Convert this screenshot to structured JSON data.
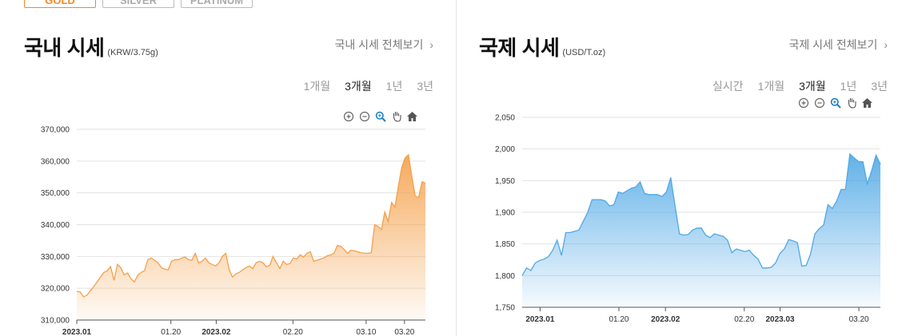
{
  "tabs": [
    {
      "label": "GOLD",
      "active": true
    },
    {
      "label": "SILVER",
      "active": false
    },
    {
      "label": "PLATINUM",
      "active": false
    }
  ],
  "domestic": {
    "title": "국내 시세",
    "unit": "(KRW/3.75g)",
    "more_link": "국내 시세 전체보기",
    "periods": [
      {
        "label": "1개월",
        "active": false
      },
      {
        "label": "3개월",
        "active": true
      },
      {
        "label": "1년",
        "active": false
      },
      {
        "label": "3년",
        "active": false
      }
    ]
  },
  "international": {
    "title": "국제 시세",
    "unit": "(USD/T.oz)",
    "more_link": "국제 시세 전체보기",
    "periods": [
      {
        "label": "실시간",
        "active": false
      },
      {
        "label": "1개월",
        "active": false
      },
      {
        "label": "3개월",
        "active": true
      },
      {
        "label": "1년",
        "active": false
      },
      {
        "label": "3년",
        "active": false
      }
    ]
  },
  "tool_icons": [
    "zoom-in-icon",
    "zoom-out-icon",
    "magnifier-icon",
    "hand-pan-icon",
    "home-icon"
  ],
  "chart_data": [
    {
      "type": "area",
      "series_color": "#f5a04a",
      "ylim": [
        310000,
        370000
      ],
      "yticks": [
        310000,
        320000,
        330000,
        340000,
        350000,
        360000,
        370000
      ],
      "ytick_labels": [
        "310,000",
        "320,000",
        "330,000",
        "340,000",
        "350,000",
        "360,000",
        "370,000"
      ],
      "xticks": [
        {
          "label": "2023.01",
          "pos": 0.0,
          "bold": true
        },
        {
          "label": "01.20",
          "pos": 0.27,
          "bold": false
        },
        {
          "label": "2023.02",
          "pos": 0.4,
          "bold": true
        },
        {
          "label": "02.20",
          "pos": 0.62,
          "bold": false
        },
        {
          "label": "03.10",
          "pos": 0.83,
          "bold": false
        },
        {
          "label": "03.20",
          "pos": 0.94,
          "bold": false
        }
      ],
      "values": [
        319000,
        318800,
        317300,
        317800,
        319200,
        320500,
        322000,
        323500,
        325000,
        325500,
        326800,
        322500,
        327500,
        326500,
        324200,
        324800,
        323000,
        322000,
        324000,
        325000,
        325500,
        329000,
        329500,
        328800,
        328000,
        326500,
        326000,
        325800,
        328500,
        329000,
        329000,
        329500,
        329800,
        329000,
        328800,
        331000,
        328000,
        328500,
        329500,
        328000,
        327500,
        327000,
        328000,
        330000,
        331000,
        326000,
        323500,
        324500,
        325000,
        325800,
        326500,
        327000,
        326200,
        328000,
        328500,
        328000,
        326800,
        327200,
        330000,
        328000,
        326200,
        328500,
        327500,
        327800,
        329500,
        329200,
        330500,
        329800,
        331000,
        331500,
        328500,
        328800,
        329200,
        329500,
        330200,
        330500,
        331000,
        333500,
        333200,
        332200,
        331000,
        332000,
        331800,
        331500,
        331200,
        331000,
        331000,
        331200,
        340000,
        339500,
        338500,
        344000,
        341000,
        347000,
        345500,
        352000,
        358000,
        361000,
        362000,
        355000,
        349000,
        348500,
        353500,
        353000
      ]
    },
    {
      "type": "area",
      "series_color": "#4fa8e6",
      "ylim": [
        1750,
        2050
      ],
      "yticks": [
        1750,
        1800,
        1850,
        1900,
        1950,
        2000,
        2050
      ],
      "ytick_labels": [
        "1,750",
        "1,800",
        "1,850",
        "1,900",
        "1,950",
        "2,000",
        "2,050"
      ],
      "xticks": [
        {
          "label": "2023.01",
          "pos": 0.05,
          "bold": true
        },
        {
          "label": "01.20",
          "pos": 0.27,
          "bold": false
        },
        {
          "label": "2023.02",
          "pos": 0.4,
          "bold": true
        },
        {
          "label": "02.20",
          "pos": 0.62,
          "bold": false
        },
        {
          "label": "2023.03",
          "pos": 0.72,
          "bold": true
        },
        {
          "label": "03.20",
          "pos": 0.94,
          "bold": false
        }
      ],
      "values": [
        1800,
        1812,
        1808,
        1820,
        1824,
        1826,
        1830,
        1840,
        1856,
        1832,
        1868,
        1868,
        1870,
        1872,
        1886,
        1900,
        1920,
        1920,
        1920,
        1918,
        1910,
        1912,
        1932,
        1930,
        1934,
        1938,
        1940,
        1948,
        1930,
        1928,
        1928,
        1928,
        1925,
        1932,
        1955,
        1910,
        1866,
        1864,
        1865,
        1872,
        1875,
        1875,
        1864,
        1860,
        1866,
        1864,
        1862,
        1856,
        1836,
        1842,
        1840,
        1838,
        1840,
        1832,
        1826,
        1812,
        1812,
        1813,
        1820,
        1835,
        1842,
        1857,
        1855,
        1852,
        1815,
        1816,
        1834,
        1866,
        1874,
        1880,
        1912,
        1906,
        1918,
        1936,
        1936,
        1992,
        1986,
        1980,
        1980,
        1945,
        1966,
        1990,
        1976
      ]
    }
  ]
}
